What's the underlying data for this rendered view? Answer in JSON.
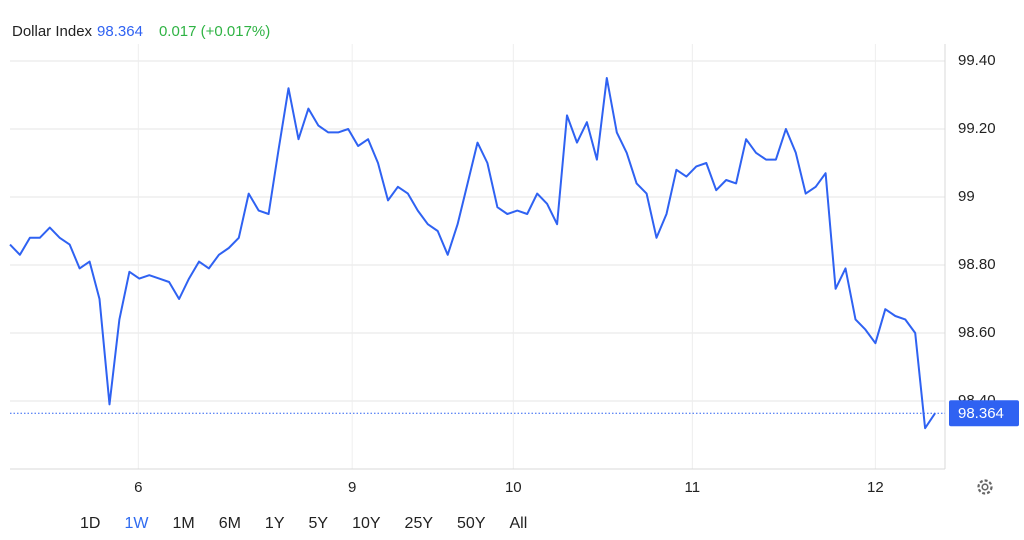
{
  "chart_data": {
    "type": "line",
    "title": "Dollar Index",
    "last_value": 98.364,
    "change": "0.017 (+0.017%)",
    "x": [
      0,
      1,
      2,
      3,
      4,
      5,
      6,
      7,
      8,
      9,
      10,
      11,
      12,
      13,
      14,
      15,
      16,
      17,
      18,
      19,
      20,
      21,
      22,
      23,
      24,
      25,
      26,
      27,
      28,
      29,
      30,
      31,
      32,
      33,
      34,
      35,
      36,
      37,
      38,
      39,
      40,
      41,
      42,
      43,
      44,
      45,
      46,
      47,
      48,
      49,
      50,
      51,
      52,
      53,
      54,
      55,
      56,
      57,
      58,
      59,
      60,
      61,
      62,
      63,
      64,
      65,
      66,
      67,
      68,
      69,
      70,
      71,
      72,
      73,
      74,
      75,
      76,
      77,
      78,
      79,
      80,
      81,
      82,
      83,
      84,
      85,
      86,
      87,
      88,
      89,
      90,
      91,
      92,
      93
    ],
    "series": [
      {
        "name": "Dollar Index",
        "color": "#2f62f2",
        "values": [
          98.86,
          98.83,
          98.88,
          98.88,
          98.91,
          98.88,
          98.86,
          98.79,
          98.81,
          98.7,
          98.39,
          98.64,
          98.78,
          98.76,
          98.77,
          98.76,
          98.75,
          98.7,
          98.76,
          98.81,
          98.79,
          98.83,
          98.85,
          98.88,
          99.01,
          98.96,
          98.95,
          99.14,
          99.32,
          99.17,
          99.26,
          99.21,
          99.19,
          99.19,
          99.2,
          99.15,
          99.17,
          99.1,
          98.99,
          99.03,
          99.01,
          98.96,
          98.92,
          98.9,
          98.83,
          98.92,
          99.04,
          99.16,
          99.1,
          98.97,
          98.95,
          98.96,
          98.95,
          99.01,
          98.98,
          98.92,
          99.24,
          99.16,
          99.22,
          99.11,
          99.35,
          99.19,
          99.13,
          99.04,
          99.01,
          98.88,
          98.95,
          99.08,
          99.06,
          99.09,
          99.1,
          99.02,
          99.05,
          99.04,
          99.17,
          99.13,
          99.11,
          99.11,
          99.2,
          99.13,
          99.01,
          99.03,
          99.07,
          98.73,
          98.79,
          98.64,
          98.61,
          98.57,
          98.67,
          98.65,
          98.64,
          98.6,
          98.32,
          98.364
        ]
      }
    ],
    "xlim": [
      0,
      94
    ],
    "xticks": [
      {
        "value": 12.9,
        "label": "6"
      },
      {
        "value": 34.4,
        "label": "9"
      },
      {
        "value": 50.6,
        "label": "10"
      },
      {
        "value": 68.6,
        "label": "11"
      },
      {
        "value": 87.0,
        "label": "12"
      }
    ],
    "ylim": [
      98.2,
      99.45
    ],
    "yticks": [
      {
        "value": 99.4,
        "label": "99.40"
      },
      {
        "value": 99.2,
        "label": "99.20"
      },
      99,
      {
        "value": 98.8,
        "label": "98.80"
      },
      {
        "value": 98.6,
        "label": "98.60"
      },
      {
        "value": 98.4,
        "label": "98.40"
      }
    ],
    "grid": true,
    "ranges": [
      "1D",
      "1W",
      "1M",
      "6M",
      "1Y",
      "5Y",
      "10Y",
      "25Y",
      "50Y",
      "All"
    ],
    "selected_range": 1
  }
}
